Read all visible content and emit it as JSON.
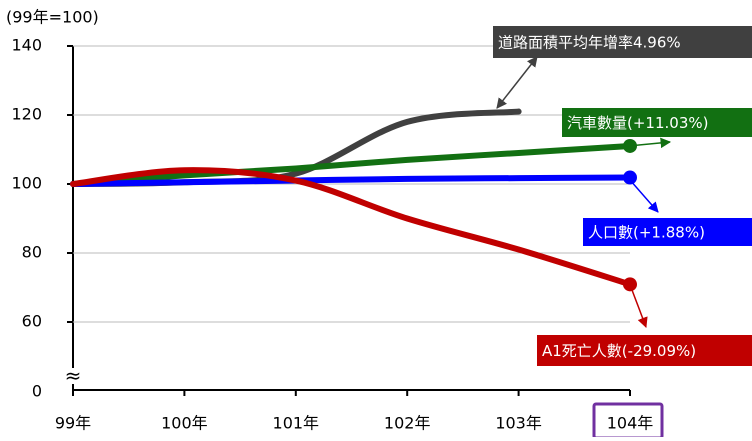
{
  "chart_data": {
    "type": "line",
    "y_unit_label": "(99年=100)",
    "y_break_label": "0",
    "categories": [
      "99年",
      "100年",
      "101年",
      "102年",
      "103年",
      "104年"
    ],
    "series": [
      {
        "name": "道路面積平均年增率4.96%",
        "color": "#404040",
        "values": [
          100,
          100.5,
          103,
          118,
          121,
          null
        ]
      },
      {
        "name": "汽車數量(+11.03%)",
        "color": "#127012",
        "values": [
          100,
          102.5,
          104.5,
          107,
          109,
          111.03
        ]
      },
      {
        "name": "人口數(+1.88%)",
        "color": "#0000ff",
        "values": [
          100,
          100.5,
          101,
          101.5,
          101.7,
          101.88
        ]
      },
      {
        "name": "A1死亡人數(-29.09%)",
        "color": "#c00000",
        "values": [
          100,
          104,
          101,
          90,
          81,
          70.91
        ]
      }
    ],
    "ylim": [
      40,
      140
    ],
    "yticks": [
      60,
      80,
      100,
      120,
      140
    ],
    "grid": true
  }
}
